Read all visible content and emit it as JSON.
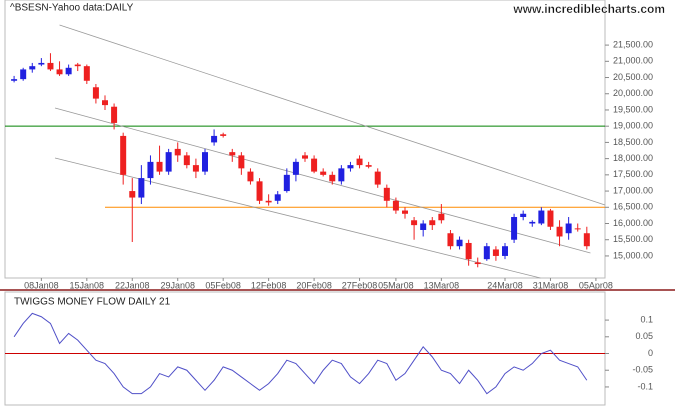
{
  "source": "www.incrediblecharts.com",
  "chart_data": [
    {
      "type": "candlestick",
      "title": "^BSESN-Yahoo data:DAILY",
      "up_color": "#2020e0",
      "down_color": "#ee2020",
      "open": [
        20400,
        20450,
        20750,
        20900,
        20950,
        20750,
        20600,
        20900,
        20850,
        20200,
        19800,
        19600,
        18700,
        17000,
        16800,
        17400,
        17900,
        17600,
        18300,
        18100,
        17800,
        17600,
        18500,
        18750,
        18200,
        18100,
        17600,
        17300,
        16700,
        16700,
        17000,
        17500,
        18100,
        18000,
        17600,
        17500,
        17300,
        17700,
        18000,
        17800,
        17600,
        17100,
        16700,
        16400,
        16100,
        15800,
        16100,
        16300,
        15700,
        15300,
        15400,
        14800,
        14900,
        15200,
        15000,
        15500,
        16200,
        16000,
        16000,
        16400,
        15900,
        15700,
        15850,
        15700
      ],
      "high": [
        20550,
        20800,
        20950,
        21100,
        21250,
        21000,
        20900,
        20950,
        20900,
        20300,
        19950,
        19700,
        18800,
        17400,
        17800,
        18100,
        18400,
        18300,
        18500,
        18200,
        18000,
        18300,
        18900,
        18800,
        18300,
        18200,
        17700,
        17400,
        16900,
        17000,
        17700,
        18000,
        18200,
        18100,
        17700,
        17600,
        17800,
        17900,
        18100,
        17900,
        17700,
        17200,
        16800,
        16500,
        16200,
        16100,
        16200,
        16600,
        15800,
        15600,
        15500,
        14950,
        15400,
        15300,
        15400,
        16300,
        16400,
        16100,
        16500,
        16450,
        16100,
        16200,
        16000,
        15900
      ],
      "low": [
        20350,
        20400,
        20650,
        20850,
        20700,
        20550,
        20550,
        20700,
        20300,
        19700,
        19500,
        18900,
        17200,
        15430,
        16600,
        17200,
        17500,
        17500,
        17900,
        17700,
        17400,
        17500,
        18400,
        18650,
        17900,
        17500,
        17200,
        16600,
        16550,
        16600,
        16950,
        17300,
        17900,
        17550,
        17450,
        17200,
        17200,
        17600,
        17700,
        17700,
        17100,
        16500,
        16300,
        16150,
        15500,
        15600,
        15800,
        16000,
        15200,
        15200,
        14700,
        14650,
        14850,
        14850,
        14900,
        15400,
        16100,
        15900,
        15950,
        15800,
        15300,
        15500,
        15750,
        15200
      ],
      "close": [
        20450,
        20750,
        20850,
        20950,
        20750,
        20600,
        20800,
        20850,
        20400,
        19850,
        19650,
        19100,
        17500,
        16800,
        17400,
        17900,
        17600,
        18200,
        18100,
        17800,
        17600,
        18200,
        18700,
        18700,
        18100,
        17700,
        17300,
        16700,
        16650,
        16900,
        17500,
        17900,
        18000,
        17600,
        17500,
        17300,
        17700,
        17800,
        17800,
        17750,
        17200,
        16700,
        16400,
        16300,
        15950,
        16000,
        15950,
        16100,
        15300,
        15500,
        14900,
        14750,
        15300,
        15000,
        15300,
        16200,
        16300,
        16050,
        16400,
        15900,
        15600,
        16000,
        15850,
        15300
      ],
      "xlim": [
        -1,
        65
      ],
      "xticks": [
        {
          "value": 3,
          "label": "08Jan08"
        },
        {
          "value": 8,
          "label": "15Jan08"
        },
        {
          "value": 13,
          "label": "22Jan08"
        },
        {
          "value": 18,
          "label": "29Jan08"
        },
        {
          "value": 23,
          "label": "05Feb08"
        },
        {
          "value": 28,
          "label": "12Feb08"
        },
        {
          "value": 33,
          "label": "20Feb08"
        },
        {
          "value": 38,
          "label": "27Feb08"
        },
        {
          "value": 42,
          "label": "05Mar08"
        },
        {
          "value": 47,
          "label": "13Mar08"
        },
        {
          "value": 54,
          "label": "24Mar08"
        },
        {
          "value": 59,
          "label": "31Mar08"
        },
        {
          "value": 64,
          "label": "05Apr08"
        }
      ],
      "ylim": [
        14320,
        22890
      ],
      "yticks": [
        {
          "value": 15000,
          "label": "15,000.00"
        },
        {
          "value": 15500,
          "label": "15,500.00"
        },
        {
          "value": 16000,
          "label": "16,000.00"
        },
        {
          "value": 16500,
          "label": "16,500.00"
        },
        {
          "value": 17000,
          "label": "17,000.00"
        },
        {
          "value": 17500,
          "label": "17,500.00"
        },
        {
          "value": 18000,
          "label": "18,000.00"
        },
        {
          "value": 18500,
          "label": "18,500.00"
        },
        {
          "value": 19000,
          "label": "19,000.00"
        },
        {
          "value": 19500,
          "label": "19,500.00"
        },
        {
          "value": 20000,
          "label": "20,000.00"
        },
        {
          "value": 20500,
          "label": "20,500.00"
        },
        {
          "value": 21000,
          "label": "21,000.00"
        },
        {
          "value": 21500,
          "label": "21,500.00"
        }
      ],
      "trendlines": [
        {
          "color": "#999999",
          "x": [
            5,
            65
          ],
          "y": [
            22120,
            16570
          ]
        },
        {
          "color": "#999999",
          "x": [
            4.5,
            63.4
          ],
          "y": [
            19560,
            15090
          ]
        },
        {
          "color": "#999999",
          "x": [
            4.5,
            57.9
          ],
          "y": [
            18020,
            14320
          ]
        }
      ],
      "hlines": [
        {
          "value": 19000,
          "color": "#008000",
          "from": -1
        },
        {
          "value": 16500,
          "color": "#ff8c00",
          "from": 10
        }
      ]
    },
    {
      "type": "line",
      "title": "TWIGGS MONEY FLOW DAILY 21",
      "color": "#5050c8",
      "values": [
        0.05,
        0.09,
        0.12,
        0.11,
        0.09,
        0.03,
        0.06,
        0.04,
        0.01,
        -0.02,
        -0.03,
        -0.06,
        -0.1,
        -0.12,
        -0.12,
        -0.1,
        -0.06,
        -0.07,
        -0.04,
        -0.05,
        -0.08,
        -0.11,
        -0.08,
        -0.04,
        -0.05,
        -0.07,
        -0.09,
        -0.11,
        -0.09,
        -0.06,
        -0.02,
        -0.03,
        -0.06,
        -0.09,
        -0.05,
        -0.02,
        -0.03,
        -0.07,
        -0.09,
        -0.06,
        -0.02,
        -0.03,
        -0.08,
        -0.06,
        -0.02,
        0.02,
        -0.01,
        -0.05,
        -0.06,
        -0.09,
        -0.05,
        -0.08,
        -0.12,
        -0.1,
        -0.06,
        -0.04,
        -0.05,
        -0.03,
        0,
        0.01,
        -0.02,
        -0.03,
        -0.04,
        -0.08
      ],
      "xlim": [
        -1,
        65
      ],
      "ylim": [
        -0.154,
        0.184
      ],
      "yticks": [
        0.1,
        0.05,
        0,
        -0.05,
        -0.1
      ],
      "hlines": [
        {
          "value": 0,
          "color": "#cc0000",
          "from": -1
        }
      ]
    }
  ]
}
